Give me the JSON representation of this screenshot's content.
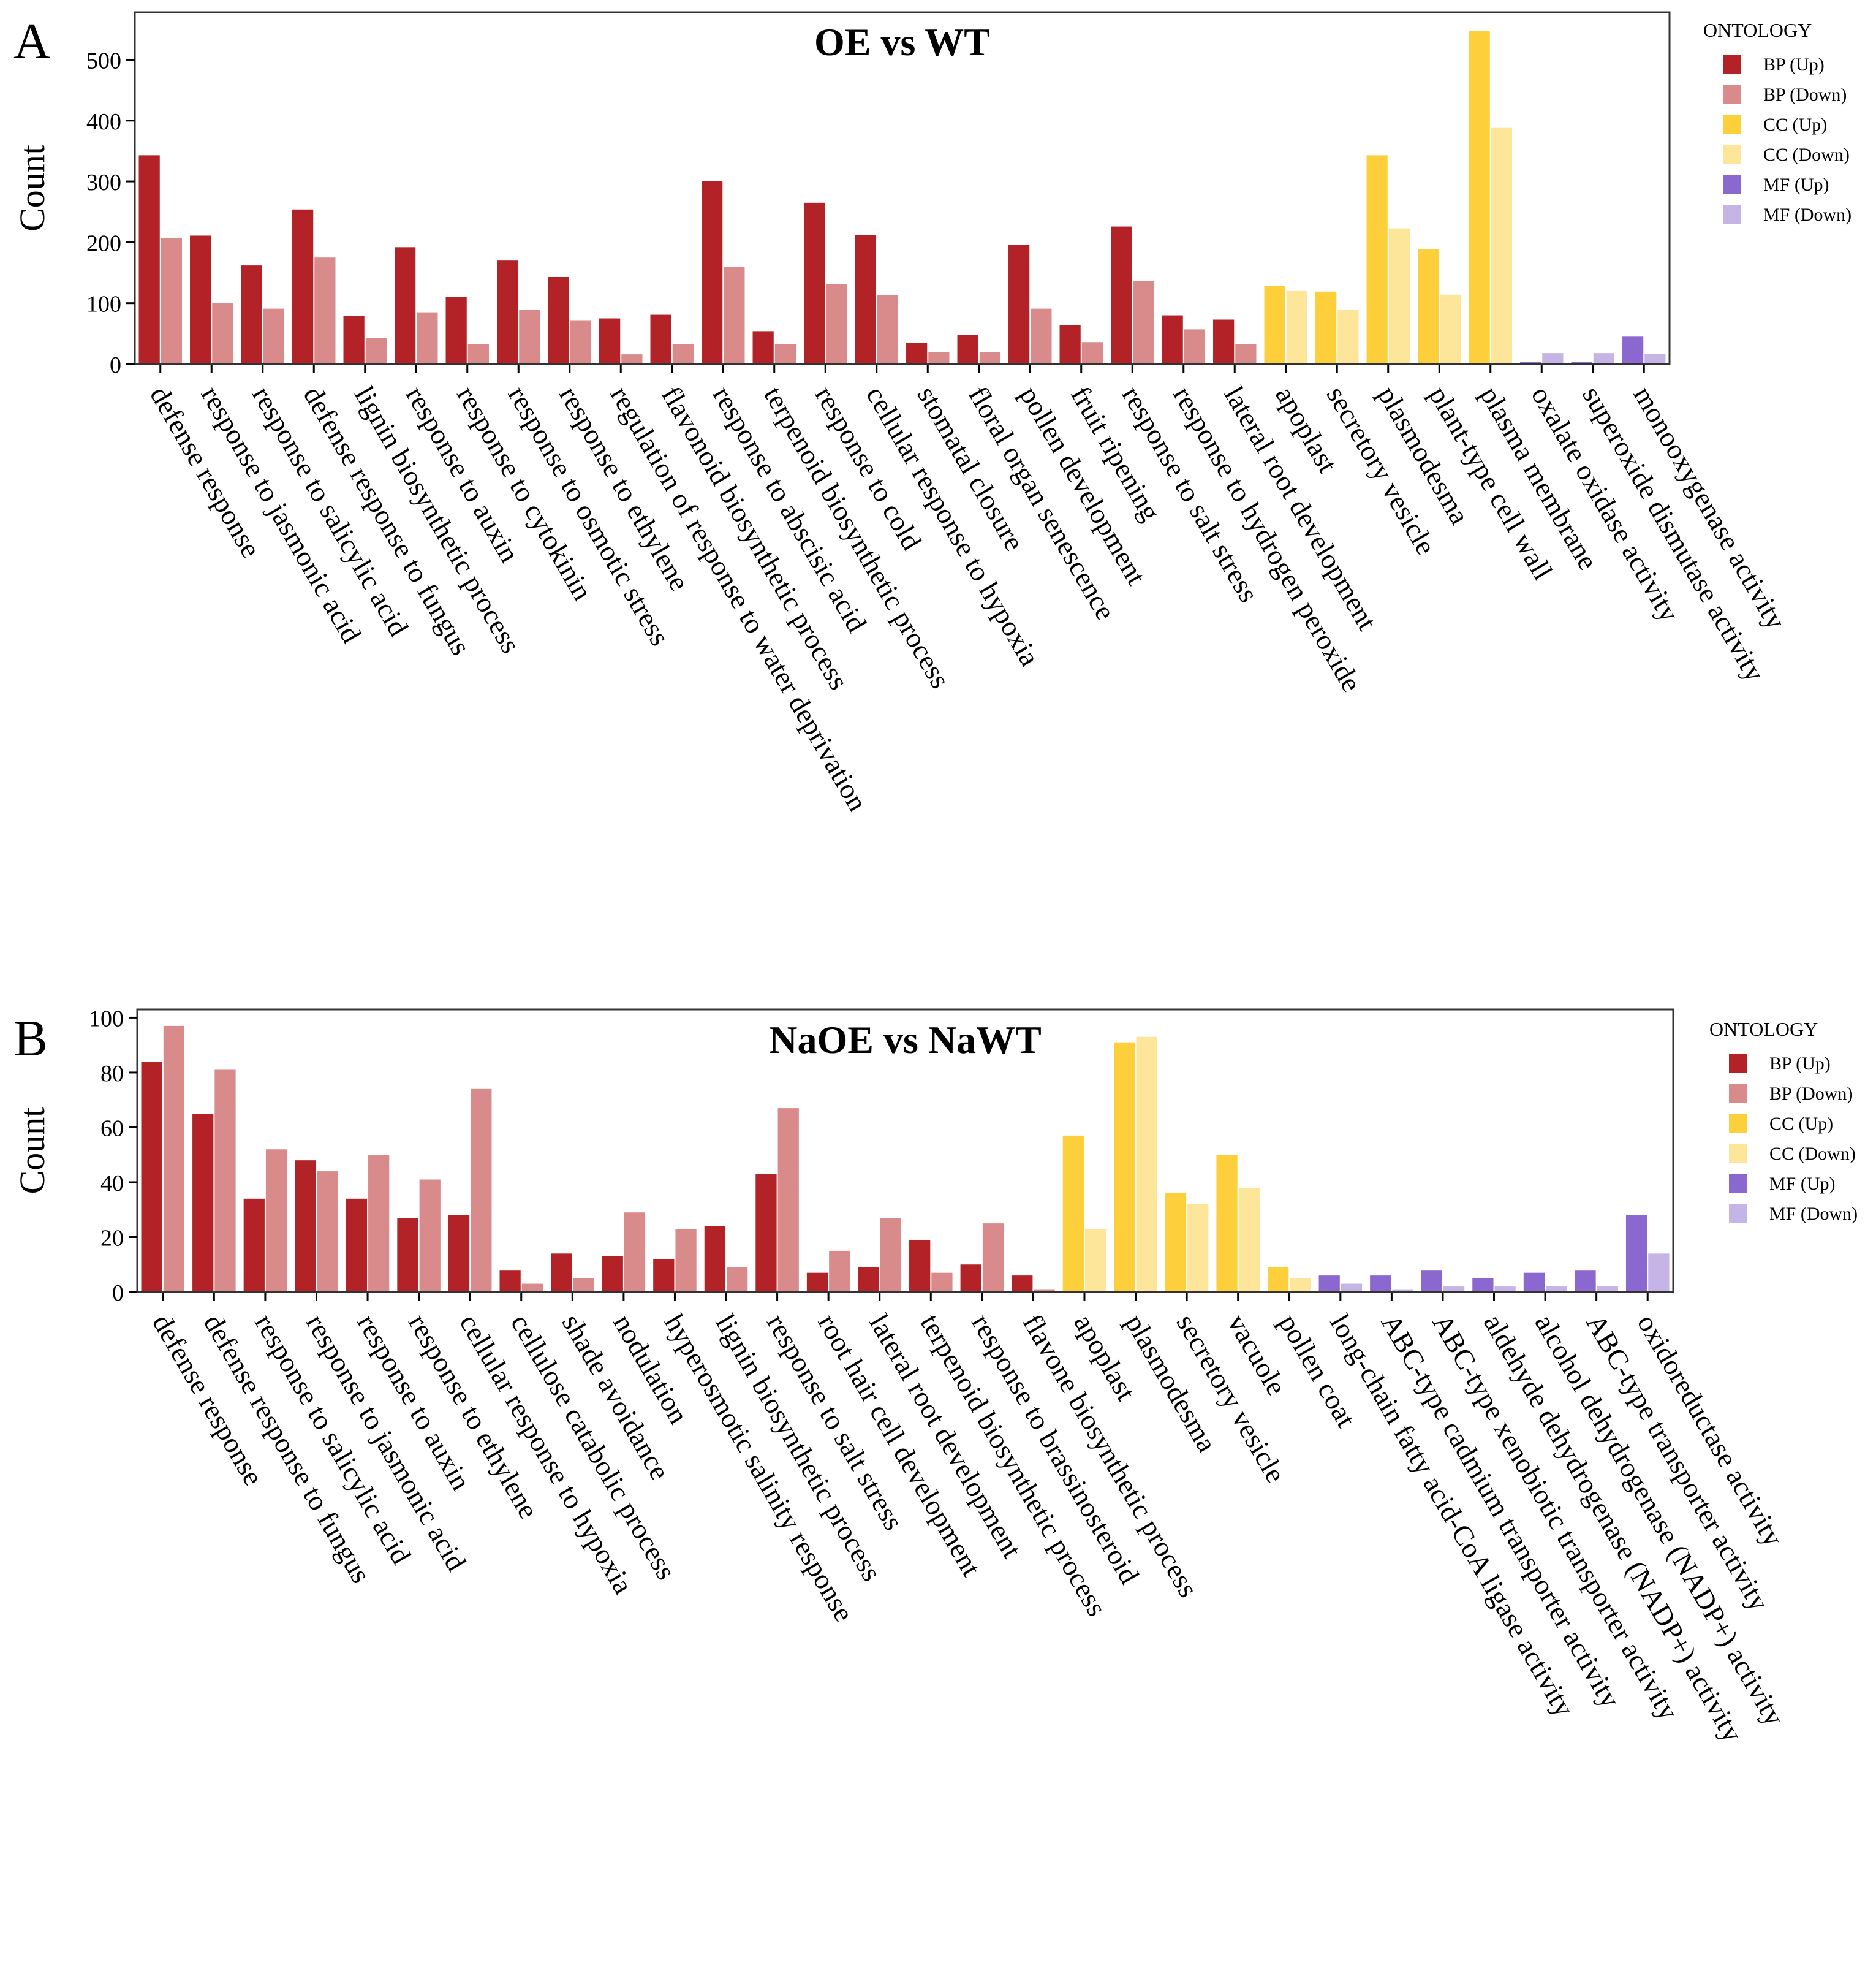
{
  "colors": {
    "BP (Up)": "#B22226",
    "BP (Down)": "#D98A8A",
    "CC (Up)": "#FDCF3A",
    "CC (Down)": "#FDE59A",
    "MF (Up)": "#8B68D0",
    "MF (Down)": "#C5B5E6"
  },
  "chart_data": [
    {
      "panel": "A",
      "type": "bar",
      "title": "OE vs WT",
      "ylabel": "Count",
      "xlabel": "",
      "ylim": [
        0,
        578
      ],
      "yticks": [
        0,
        100,
        200,
        300,
        400,
        500
      ],
      "legend_title": "ONTOLOGY",
      "legend": [
        "BP (Up)",
        "BP (Down)",
        "CC (Up)",
        "CC (Down)",
        "MF (Up)",
        "MF (Down)"
      ],
      "legend_placement": "right",
      "categories": [
        "defense response",
        "response to jasmonic acid",
        "response to salicylic acid",
        "defense response to fungus",
        "lignin biosynthetic process",
        "response to auxin",
        "response to cytokinin",
        "response to osmotic stress",
        "response to ethylene",
        "regulation of response to water deprivation",
        "flavonoid biosynthetic process",
        "response to abscisic acid",
        "terpenoid biosynthetic process",
        "response to cold",
        "cellular response to hypoxia",
        "stomatal closure",
        "floral organ senescence",
        "pollen development",
        "fruit ripening",
        "response to salt stress",
        "response to hydrogen peroxide",
        "lateral root development",
        "apoplast",
        "secretory vesicle",
        "plasmodesma",
        "plant-type cell wall",
        "plasma membrane",
        "oxalate oxidase activity",
        "superoxide dismutase activity",
        "monooxygenase activity"
      ],
      "ontology": [
        "BP",
        "BP",
        "BP",
        "BP",
        "BP",
        "BP",
        "BP",
        "BP",
        "BP",
        "BP",
        "BP",
        "BP",
        "BP",
        "BP",
        "BP",
        "BP",
        "BP",
        "BP",
        "BP",
        "BP",
        "BP",
        "BP",
        "CC",
        "CC",
        "CC",
        "CC",
        "CC",
        "MF",
        "MF",
        "MF"
      ],
      "series": [
        {
          "name": "Up",
          "values": [
            343,
            211,
            162,
            254,
            79,
            192,
            110,
            170,
            143,
            75,
            81,
            301,
            54,
            265,
            212,
            35,
            48,
            196,
            64,
            226,
            80,
            73,
            128,
            119,
            343,
            189,
            547,
            3,
            3,
            45
          ]
        },
        {
          "name": "Down",
          "values": [
            207,
            100,
            91,
            175,
            43,
            85,
            33,
            89,
            72,
            16,
            33,
            160,
            33,
            131,
            113,
            20,
            20,
            91,
            36,
            136,
            57,
            33,
            121,
            89,
            223,
            114,
            388,
            18,
            18,
            17
          ]
        }
      ]
    },
    {
      "panel": "B",
      "type": "bar",
      "title": "NaOE vs NaWT",
      "ylabel": "Count",
      "xlabel": "",
      "ylim": [
        0,
        103
      ],
      "yticks": [
        0,
        20,
        40,
        60,
        80,
        100
      ],
      "legend_title": "ONTOLOGY",
      "legend": [
        "BP (Up)",
        "BP (Down)",
        "CC (Up)",
        "CC (Down)",
        "MF (Up)",
        "MF (Down)"
      ],
      "legend_placement": "right",
      "categories": [
        "defense response",
        "defense response to fungus",
        "response to salicylic acid",
        "response to jasmonic acid",
        "response to auxin",
        "response to ethylene",
        "cellular response to hypoxia",
        "cellulose catabolic process",
        "shade avoidance",
        "nodulation",
        "hyperosmotic salinity response",
        "lignin biosynthetic process",
        "response to salt stress",
        "root hair cell development",
        "lateral root development",
        "terpenoid biosynthetic process",
        "response to brassinosteroid",
        "flavone biosynthetic process",
        "apoplast",
        "plasmodesma",
        "secretory vesicle",
        "vacuole",
        "pollen coat",
        "long-chain fatty acid-CoA ligase activity",
        "ABC-type cadmium transporter activity",
        "ABC-type xenobiotic transporter activity",
        "aldehyde dehydrogenase (NADP+) activity",
        "alcohol dehydrogenase (NADP+) activity",
        "ABC-type transporter activity",
        "oxidoreductase activity"
      ],
      "ontology": [
        "BP",
        "BP",
        "BP",
        "BP",
        "BP",
        "BP",
        "BP",
        "BP",
        "BP",
        "BP",
        "BP",
        "BP",
        "BP",
        "BP",
        "BP",
        "BP",
        "BP",
        "BP",
        "CC",
        "CC",
        "CC",
        "CC",
        "CC",
        "MF",
        "MF",
        "MF",
        "MF",
        "MF",
        "MF",
        "MF"
      ],
      "series": [
        {
          "name": "Up",
          "values": [
            84,
            65,
            34,
            48,
            34,
            27,
            28,
            8,
            14,
            13,
            12,
            24,
            43,
            7,
            9,
            19,
            10,
            6,
            57,
            91,
            36,
            50,
            9,
            6,
            6,
            8,
            5,
            7,
            8,
            28
          ]
        },
        {
          "name": "Down",
          "values": [
            97,
            81,
            52,
            44,
            50,
            41,
            74,
            3,
            5,
            29,
            23,
            9,
            67,
            15,
            27,
            7,
            25,
            1,
            23,
            93,
            32,
            38,
            5,
            3,
            1,
            2,
            2,
            2,
            2,
            14
          ]
        }
      ]
    }
  ]
}
